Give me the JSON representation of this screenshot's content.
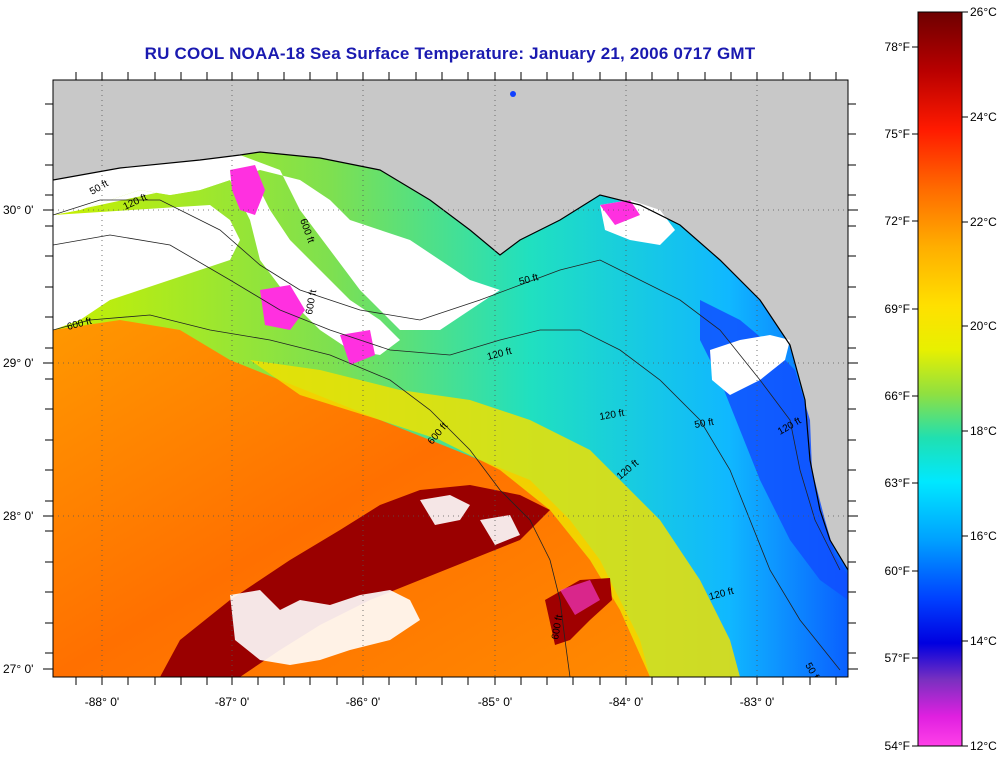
{
  "title": "RU COOL  NOAA-18  Sea Surface Temperature:  January 21, 2006 0717 GMT",
  "map": {
    "lon_ticks": [
      "-88° 0'",
      "-87° 0'",
      "-86° 0'",
      "-85° 0'",
      "-84° 0'",
      "-83° 0'"
    ],
    "lat_ticks": [
      "30° 0'",
      "29° 0'",
      "28° 0'",
      "27° 0'"
    ],
    "contour_labels": [
      "600 ft",
      "120 ft",
      "50 ft",
      "600 ft",
      "120 ft",
      "120 ft",
      "50 ft",
      "120 ft",
      "600 ft",
      "120 ft",
      "50 ft",
      "50 ft",
      "120 ft",
      "600 ft",
      "600 ft"
    ],
    "colors": {
      "land": "#c8c8c8",
      "cloud": "#ffffff",
      "coast": "#000000"
    }
  },
  "colorbar": {
    "fahrenheit_labels": [
      "78°F",
      "75°F",
      "72°F",
      "69°F",
      "66°F",
      "63°F",
      "60°F",
      "57°F",
      "54°F"
    ],
    "celsius_labels": [
      "26°C",
      "24°C",
      "22°C",
      "20°C",
      "18°C",
      "16°C",
      "14°C",
      "12°C"
    ],
    "stops": [
      "#7a0000",
      "#c80000",
      "#ff2a00",
      "#ff7a00",
      "#ffb000",
      "#ffe000",
      "#e8f000",
      "#90e040",
      "#20e0b0",
      "#00e8ff",
      "#00a8ff",
      "#0040ff",
      "#0000e0",
      "#7a30c0",
      "#e020e0",
      "#ff40e8"
    ]
  }
}
